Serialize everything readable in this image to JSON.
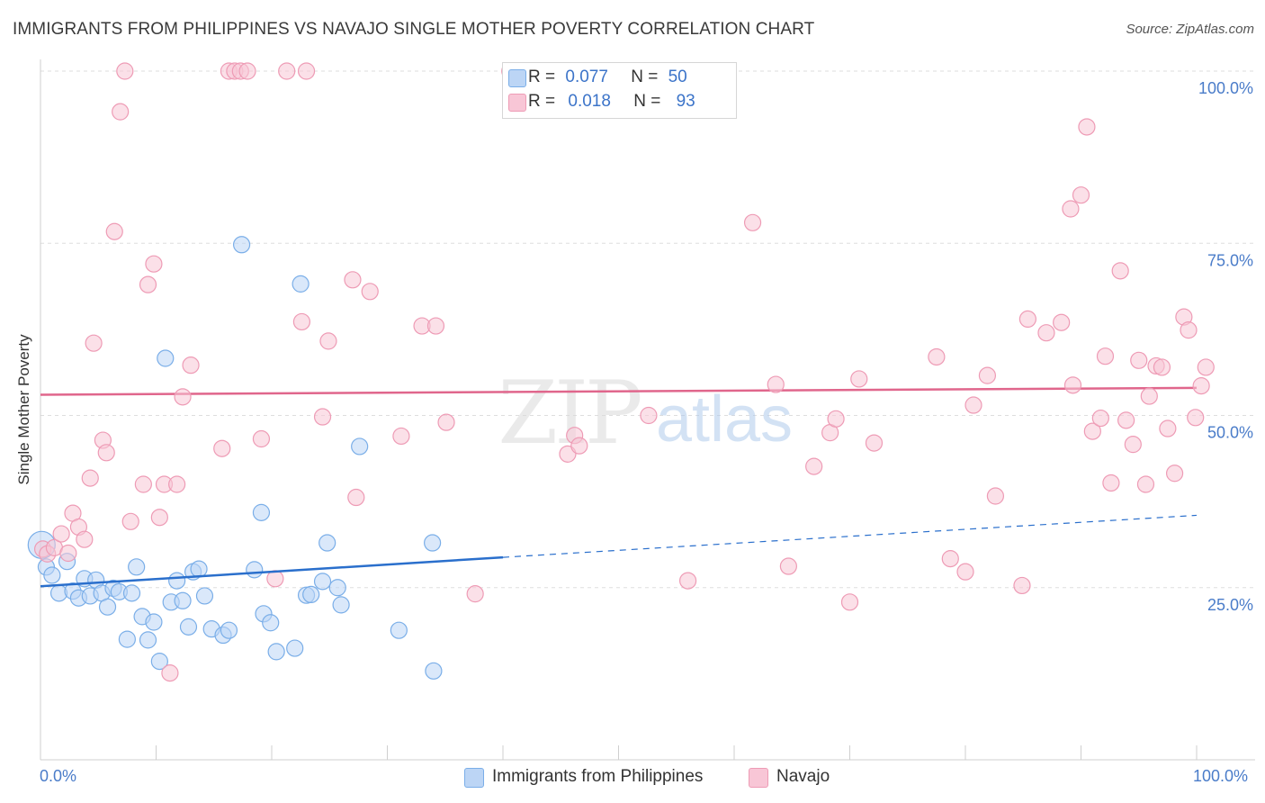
{
  "title": "IMMIGRANTS FROM PHILIPPINES VS NAVAJO SINGLE MOTHER POVERTY CORRELATION CHART",
  "source": "Source: ZipAtlas.com",
  "watermark": {
    "zip": "ZIP",
    "atlas": "atlas"
  },
  "legend": {
    "series1": {
      "r_label": "R =",
      "r_value": "0.077",
      "n_label": "N =",
      "n_value": "50"
    },
    "series2": {
      "r_label": "R =",
      "r_value": "0.018",
      "n_label": "N =",
      "n_value": "93"
    }
  },
  "bottom_legend": {
    "series1": "Immigrants from Philippines",
    "series2": "Navajo"
  },
  "x_tick_left": "0.0%",
  "x_tick_right": "100.0%",
  "chart_data": {
    "type": "scatter",
    "title": "IMMIGRANTS FROM PHILIPPINES VS NAVAJO SINGLE MOTHER POVERTY CORRELATION CHART",
    "xlabel": "",
    "ylabel": "Single Mother Poverty",
    "xlim": [
      0,
      100
    ],
    "ylim": [
      0,
      100
    ],
    "y_ticks": [
      {
        "value": 25,
        "label": "25.0%"
      },
      {
        "value": 50,
        "label": "50.0%"
      },
      {
        "value": 75,
        "label": "75.0%"
      },
      {
        "value": 100,
        "label": "100.0%"
      }
    ],
    "grid": true,
    "legend_position": "top-center",
    "series": [
      {
        "name": "Immigrants from Philippines",
        "color": "#7aaee8",
        "fill": "#bcd5f5",
        "trend": {
          "x0": 0,
          "y0": 25.2,
          "x1": 40,
          "y1": 29.4,
          "dashed_to_x": 100,
          "dashed_to_y": 35.5,
          "color": "#2a6fcc"
        },
        "points": [
          [
            0.1,
            31.2
          ],
          [
            0.5,
            28.0
          ],
          [
            1.0,
            26.8
          ],
          [
            1.6,
            24.2
          ],
          [
            2.3,
            28.8
          ],
          [
            2.8,
            24.5
          ],
          [
            3.3,
            23.5
          ],
          [
            3.8,
            26.3
          ],
          [
            4.3,
            23.8
          ],
          [
            4.8,
            26.1
          ],
          [
            5.3,
            24.2
          ],
          [
            5.8,
            22.2
          ],
          [
            6.3,
            24.9
          ],
          [
            6.8,
            24.4
          ],
          [
            7.5,
            17.5
          ],
          [
            7.9,
            24.2
          ],
          [
            8.3,
            28.0
          ],
          [
            8.8,
            20.8
          ],
          [
            9.3,
            17.4
          ],
          [
            9.8,
            20.0
          ],
          [
            10.3,
            14.3
          ],
          [
            10.8,
            58.3
          ],
          [
            11.3,
            22.9
          ],
          [
            11.8,
            26.0
          ],
          [
            12.3,
            23.1
          ],
          [
            12.8,
            19.3
          ],
          [
            13.2,
            27.3
          ],
          [
            13.7,
            27.7
          ],
          [
            14.2,
            23.8
          ],
          [
            14.8,
            19.0
          ],
          [
            15.8,
            18.1
          ],
          [
            16.3,
            18.8
          ],
          [
            17.4,
            74.8
          ],
          [
            18.5,
            27.6
          ],
          [
            19.1,
            35.9
          ],
          [
            19.3,
            21.2
          ],
          [
            19.9,
            19.9
          ],
          [
            20.4,
            15.7
          ],
          [
            22.0,
            16.2
          ],
          [
            22.5,
            69.1
          ],
          [
            23.0,
            23.9
          ],
          [
            23.4,
            24.0
          ],
          [
            24.4,
            25.9
          ],
          [
            24.8,
            31.5
          ],
          [
            25.7,
            25.0
          ],
          [
            26.0,
            22.5
          ],
          [
            27.6,
            45.5
          ],
          [
            31.0,
            18.8
          ],
          [
            33.9,
            31.5
          ],
          [
            34.0,
            12.9
          ]
        ]
      },
      {
        "name": "Navajo",
        "color": "#ee9bb5",
        "fill": "#f8c6d6",
        "trend": {
          "x0": 0,
          "y0": 53.0,
          "x1": 100,
          "y1": 54.0,
          "color": "#e0668c"
        },
        "points": [
          [
            0.2,
            30.6
          ],
          [
            0.6,
            29.9
          ],
          [
            1.2,
            30.8
          ],
          [
            1.8,
            32.8
          ],
          [
            2.4,
            30.0
          ],
          [
            2.8,
            35.8
          ],
          [
            3.3,
            33.8
          ],
          [
            3.8,
            32.0
          ],
          [
            4.3,
            40.9
          ],
          [
            4.6,
            60.5
          ],
          [
            5.4,
            46.4
          ],
          [
            5.7,
            44.6
          ],
          [
            6.4,
            76.7
          ],
          [
            6.9,
            94.1
          ],
          [
            7.3,
            100
          ],
          [
            7.8,
            34.6
          ],
          [
            8.9,
            40.0
          ],
          [
            9.3,
            69.0
          ],
          [
            9.8,
            72.0
          ],
          [
            10.3,
            35.2
          ],
          [
            10.7,
            40.0
          ],
          [
            11.2,
            12.6
          ],
          [
            11.8,
            40.0
          ],
          [
            12.3,
            52.7
          ],
          [
            13.0,
            57.3
          ],
          [
            15.7,
            45.2
          ],
          [
            16.3,
            100
          ],
          [
            16.8,
            100
          ],
          [
            17.3,
            100
          ],
          [
            17.9,
            100
          ],
          [
            19.1,
            46.6
          ],
          [
            20.3,
            26.3
          ],
          [
            21.3,
            100
          ],
          [
            22.6,
            63.6
          ],
          [
            23.0,
            100
          ],
          [
            24.4,
            49.8
          ],
          [
            24.9,
            60.8
          ],
          [
            27.0,
            69.7
          ],
          [
            27.3,
            38.1
          ],
          [
            28.5,
            68.0
          ],
          [
            31.2,
            47.0
          ],
          [
            33.0,
            63.0
          ],
          [
            34.2,
            63.0
          ],
          [
            35.1,
            49.0
          ],
          [
            37.6,
            24.1
          ],
          [
            40.6,
            100
          ],
          [
            45.6,
            44.4
          ],
          [
            46.2,
            47.1
          ],
          [
            46.6,
            45.6
          ],
          [
            52.6,
            50.0
          ],
          [
            56.0,
            26.0
          ],
          [
            61.6,
            78.0
          ],
          [
            63.6,
            54.5
          ],
          [
            64.7,
            28.1
          ],
          [
            66.9,
            42.6
          ],
          [
            68.3,
            47.5
          ],
          [
            68.8,
            49.5
          ],
          [
            70.0,
            22.9
          ],
          [
            70.8,
            55.3
          ],
          [
            72.1,
            46.0
          ],
          [
            77.5,
            58.5
          ],
          [
            78.7,
            29.2
          ],
          [
            80.0,
            27.3
          ],
          [
            80.7,
            51.5
          ],
          [
            81.9,
            55.8
          ],
          [
            82.6,
            38.3
          ],
          [
            84.9,
            25.3
          ],
          [
            85.4,
            64.0
          ],
          [
            87.0,
            62.0
          ],
          [
            88.3,
            63.5
          ],
          [
            89.1,
            80.0
          ],
          [
            89.3,
            54.4
          ],
          [
            90.0,
            82.0
          ],
          [
            90.5,
            91.9
          ],
          [
            91.0,
            47.7
          ],
          [
            91.7,
            49.6
          ],
          [
            92.1,
            58.6
          ],
          [
            92.6,
            40.2
          ],
          [
            93.4,
            71.0
          ],
          [
            93.9,
            49.3
          ],
          [
            94.5,
            45.8
          ],
          [
            95.0,
            58.0
          ],
          [
            95.6,
            40.0
          ],
          [
            95.9,
            52.8
          ],
          [
            96.5,
            57.2
          ],
          [
            97.0,
            57.0
          ],
          [
            97.5,
            48.1
          ],
          [
            98.1,
            41.6
          ],
          [
            98.9,
            64.3
          ],
          [
            99.3,
            62.4
          ],
          [
            99.9,
            49.7
          ],
          [
            100.4,
            54.3
          ],
          [
            100.8,
            57.0
          ]
        ]
      }
    ]
  }
}
